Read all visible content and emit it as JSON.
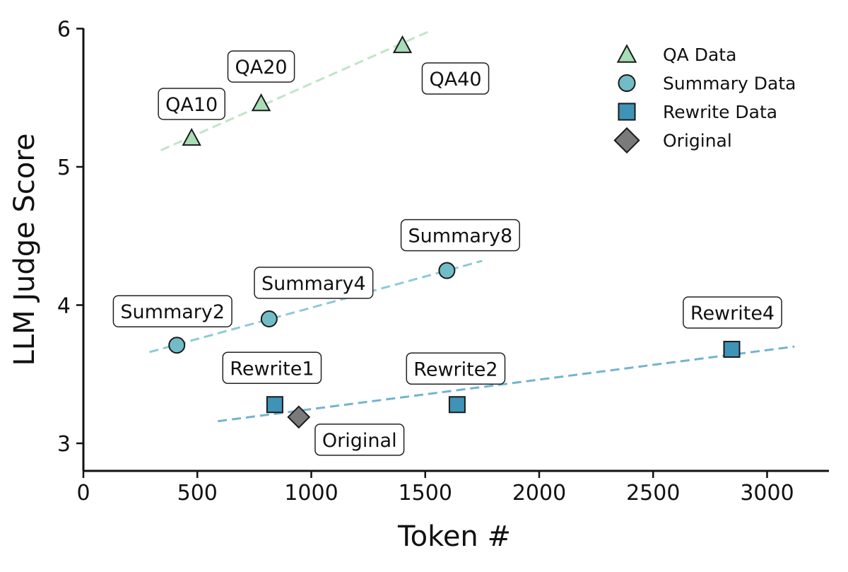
{
  "chart_data": {
    "type": "scatter",
    "xlabel": "Token #",
    "ylabel": "LLM Judge Score",
    "xlim": [
      0,
      3250
    ],
    "ylim": [
      2.8,
      6.0
    ],
    "xticks": [
      "0",
      "500",
      "1000",
      "1500",
      "2000",
      "2500",
      "3000"
    ],
    "yticks": [
      "3",
      "4",
      "5",
      "6"
    ],
    "grid": false,
    "legend_position": "top-right",
    "series": [
      {
        "name": "QA Data",
        "marker": "triangle",
        "color": "#a8dcb5",
        "line_color": "#bfe5c8",
        "trend": [
          [
            340,
            5.12
          ],
          [
            1530,
            5.99
          ]
        ],
        "points": [
          {
            "label": "QA10",
            "x": 475,
            "y": 5.21
          },
          {
            "label": "QA20",
            "x": 780,
            "y": 5.46
          },
          {
            "label": "QA40",
            "x": 1400,
            "y": 5.88
          }
        ]
      },
      {
        "name": "Summary Data",
        "marker": "circle",
        "color": "#72bcc7",
        "line_color": "#8ccad6",
        "trend": [
          [
            290,
            3.66
          ],
          [
            1750,
            4.32
          ]
        ],
        "points": [
          {
            "label": "Summary2",
            "x": 410,
            "y": 3.71
          },
          {
            "label": "Summary4",
            "x": 815,
            "y": 3.9
          },
          {
            "label": "Summary8",
            "x": 1595,
            "y": 4.25
          }
        ]
      },
      {
        "name": "Rewrite Data",
        "marker": "square",
        "color": "#3f93b6",
        "line_color": "#74b3d1",
        "trend": [
          [
            590,
            3.16
          ],
          [
            3120,
            3.7
          ]
        ],
        "points": [
          {
            "label": "Rewrite1",
            "x": 840,
            "y": 3.28
          },
          {
            "label": "Rewrite2",
            "x": 1640,
            "y": 3.28
          },
          {
            "label": "Rewrite4",
            "x": 2845,
            "y": 3.68
          }
        ]
      },
      {
        "name": "Original",
        "marker": "diamond",
        "color": "#7a7a7a",
        "points": [
          {
            "label": "Original",
            "x": 945,
            "y": 3.19
          }
        ]
      }
    ]
  }
}
